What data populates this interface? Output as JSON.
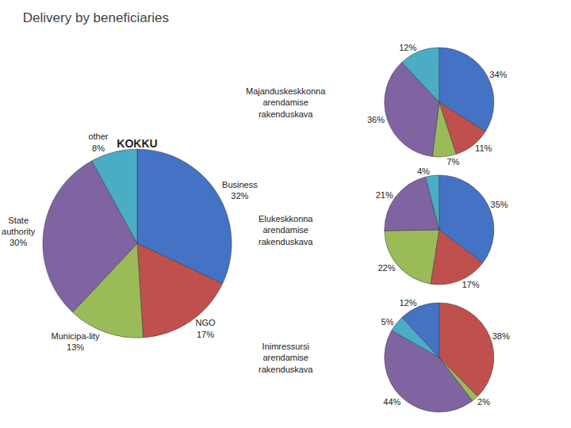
{
  "title": "Delivery by beneficiaries",
  "chart_data": [
    {
      "type": "pie",
      "title": "KOKKU",
      "categories": [
        "Business",
        "NGO",
        "Municipa-lity",
        "State\nauthority",
        "other"
      ],
      "values": [
        32,
        17,
        13,
        30,
        8
      ],
      "value_labels": [
        "32%",
        "17%",
        "13%",
        "30%",
        "8%"
      ],
      "colors": [
        "#4472C4",
        "#C0504D",
        "#9BBB59",
        "#8064A2",
        "#4BACC6"
      ],
      "data_labels": true
    },
    {
      "type": "pie",
      "title": "Majanduskeskkonna\narendamise\nrakenduskava",
      "values": [
        34,
        11,
        7,
        36,
        12
      ],
      "value_labels": [
        "34%",
        "11%",
        "7%",
        "36%",
        "12%"
      ],
      "colors": [
        "#4472C4",
        "#C0504D",
        "#9BBB59",
        "#8064A2",
        "#4BACC6"
      ],
      "data_labels": true
    },
    {
      "type": "pie",
      "title": "Elukeskkonna\narendamise\nrakenduskava",
      "values": [
        35,
        17,
        22,
        21,
        4
      ],
      "value_labels": [
        "35%",
        "17%",
        "22%",
        "21%",
        "4%"
      ],
      "colors": [
        "#4472C4",
        "#C0504D",
        "#9BBB59",
        "#8064A2",
        "#4BACC6"
      ],
      "data_labels": true
    },
    {
      "type": "pie",
      "title": "Inimressursi\narendamise\nrakenduskava",
      "values": [
        38,
        2,
        44,
        5,
        12
      ],
      "value_labels": [
        "38%",
        "2%",
        "44%",
        "5%",
        "12%"
      ],
      "colors": [
        "#C0504D",
        "#9BBB59",
        "#8064A2",
        "#4BACC6",
        "#4472C4"
      ],
      "data_labels": true
    }
  ]
}
